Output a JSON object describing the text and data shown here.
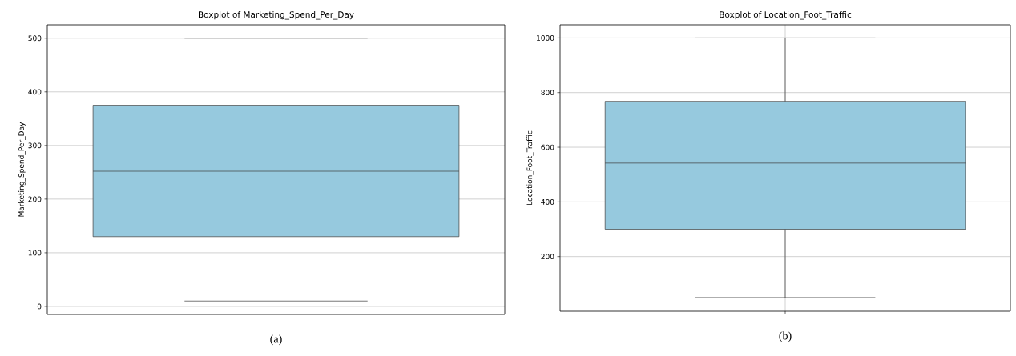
{
  "chart_data": [
    {
      "type": "box",
      "title": "Boxplot of Marketing_Spend_Per_Day",
      "ylabel": "Marketing_Spend_Per_Day",
      "categories": [
        null
      ],
      "boxes": [
        {
          "low": 10,
          "q1": 130,
          "median": 252,
          "q3": 375,
          "high": 500
        }
      ],
      "color": "#96c9de",
      "ylim": [
        -15,
        525
      ],
      "yticks": [
        0,
        100,
        200,
        300,
        400,
        500
      ],
      "grid": true,
      "tick_labels": "y",
      "annotations": [
        "(a)"
      ]
    },
    {
      "type": "box",
      "title": "Boxplot of Location_Foot_Traffic",
      "ylabel": "Location_Foot_Traffic",
      "categories": [
        null
      ],
      "boxes": [
        {
          "low": 50,
          "q1": 300,
          "median": 542,
          "q3": 768,
          "high": 1000
        }
      ],
      "color": "#96c9de",
      "ylim": [
        0,
        1048
      ],
      "yticks": [
        200,
        400,
        600,
        800,
        1000
      ],
      "grid": true,
      "tick_labels": "y",
      "annotations": [
        "(b)"
      ]
    }
  ]
}
